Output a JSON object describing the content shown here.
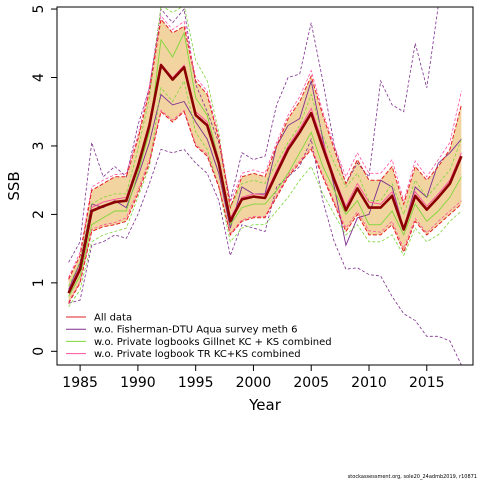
{
  "chart_data": {
    "type": "line",
    "xlabel": "Year",
    "ylabel": "SSB",
    "xlim": [
      1983,
      2019
    ],
    "ylim": [
      -0.2,
      5.03
    ],
    "x_ticks": [
      "1985",
      "1990",
      "1995",
      "2000",
      "2005",
      "2010",
      "2015"
    ],
    "y_ticks": [
      "0",
      "1",
      "2",
      "3",
      "4",
      "5"
    ],
    "x": [
      1984,
      1985,
      1986,
      1987,
      1988,
      1989,
      1990,
      1991,
      1992,
      1993,
      1994,
      1995,
      1996,
      1997,
      1998,
      1999,
      2000,
      2001,
      2002,
      2003,
      2004,
      2005,
      2006,
      2007,
      2008,
      2009,
      2010,
      2011,
      2012,
      2013,
      2014,
      2015,
      2016,
      2017,
      2018
    ],
    "series": [
      {
        "name": "All data",
        "color": "#8b0000",
        "main": true,
        "values": [
          0.85,
          1.2,
          2.05,
          2.12,
          2.18,
          2.2,
          2.7,
          3.3,
          4.18,
          3.97,
          4.15,
          3.45,
          3.3,
          2.75,
          1.9,
          2.22,
          2.26,
          2.24,
          2.6,
          2.95,
          3.2,
          3.48,
          2.98,
          2.5,
          2.06,
          2.38,
          2.1,
          2.1,
          2.27,
          1.78,
          2.27,
          2.07,
          2.25,
          2.45,
          2.85
        ],
        "lower": [
          0.7,
          1.0,
          1.75,
          1.82,
          1.85,
          1.9,
          2.3,
          2.75,
          3.5,
          3.35,
          3.5,
          3.0,
          2.85,
          2.4,
          1.7,
          1.9,
          1.95,
          1.95,
          2.25,
          2.55,
          2.75,
          2.95,
          2.55,
          2.15,
          1.75,
          2.0,
          1.7,
          1.7,
          1.85,
          1.45,
          1.9,
          1.7,
          1.85,
          2.0,
          2.15
        ],
        "upper": [
          1.05,
          1.4,
          2.35,
          2.45,
          2.55,
          2.55,
          3.1,
          3.8,
          4.85,
          4.65,
          4.75,
          3.95,
          3.75,
          3.1,
          2.1,
          2.55,
          2.6,
          2.55,
          3.0,
          3.4,
          3.65,
          4.02,
          3.45,
          2.95,
          2.45,
          2.8,
          2.5,
          2.5,
          2.7,
          2.15,
          2.7,
          2.5,
          2.7,
          2.95,
          3.6
        ]
      },
      {
        "name": "w.o. Fisherman-DTU Aqua survey meth 6",
        "color": "#7e2f8e",
        "values": [
          0.9,
          1.3,
          2.15,
          2.1,
          2.2,
          2.1,
          2.55,
          3.05,
          3.75,
          3.6,
          3.65,
          3.35,
          3.1,
          2.6,
          1.8,
          2.4,
          2.3,
          2.3,
          3.0,
          3.3,
          3.4,
          3.95,
          3.1,
          2.4,
          1.55,
          1.95,
          2.0,
          2.5,
          2.4,
          1.8,
          2.4,
          2.25,
          2.75,
          2.9,
          3.1
        ],
        "lower": [
          0.7,
          0.75,
          1.55,
          1.6,
          1.7,
          1.65,
          2.0,
          2.45,
          2.95,
          2.9,
          2.95,
          2.75,
          2.6,
          2.2,
          1.4,
          1.85,
          1.8,
          1.75,
          2.4,
          2.55,
          2.7,
          3.1,
          2.2,
          1.6,
          1.2,
          1.22,
          1.12,
          1.1,
          0.8,
          0.55,
          0.45,
          0.22,
          0.22,
          0.15,
          -0.2
        ],
        "upper": [
          1.3,
          1.6,
          3.05,
          2.55,
          2.7,
          2.55,
          3.3,
          3.85,
          5.0,
          4.8,
          5.0,
          3.9,
          3.5,
          3.05,
          2.2,
          2.9,
          2.8,
          2.85,
          3.6,
          4.0,
          4.05,
          4.8,
          3.95,
          3.0,
          2.45,
          2.75,
          2.55,
          3.95,
          3.6,
          3.5,
          4.5,
          3.85,
          5.05,
          5.05,
          5.05
        ]
      },
      {
        "name": "w.o. Private logbooks Gillnet KC + KS combined",
        "color": "#7fd63b",
        "values": [
          0.8,
          1.1,
          1.85,
          1.95,
          2.05,
          2.05,
          2.6,
          3.2,
          4.55,
          4.3,
          4.65,
          3.7,
          3.45,
          2.8,
          1.85,
          2.1,
          2.15,
          2.15,
          2.35,
          2.6,
          2.9,
          3.2,
          2.7,
          2.35,
          2.0,
          2.2,
          1.85,
          1.85,
          2.05,
          1.7,
          2.15,
          1.9,
          2.05,
          2.25,
          2.55
        ],
        "lower": [
          0.65,
          0.9,
          1.6,
          1.7,
          1.75,
          1.8,
          2.25,
          2.7,
          3.85,
          3.65,
          3.95,
          3.2,
          2.95,
          2.4,
          1.6,
          1.8,
          1.85,
          1.85,
          2.05,
          2.25,
          2.5,
          2.7,
          2.3,
          2.0,
          1.7,
          1.85,
          1.6,
          1.6,
          1.7,
          1.4,
          1.8,
          1.6,
          1.7,
          1.9,
          2.05
        ],
        "upper": [
          0.95,
          1.3,
          2.15,
          2.25,
          2.3,
          2.3,
          2.95,
          3.7,
          5.05,
          4.95,
          5.05,
          4.25,
          3.95,
          3.2,
          2.1,
          2.45,
          2.5,
          2.45,
          2.75,
          3.05,
          3.3,
          3.75,
          3.15,
          2.75,
          2.4,
          2.6,
          2.2,
          2.2,
          2.45,
          2.0,
          2.5,
          2.25,
          2.45,
          2.65,
          3.1
        ]
      },
      {
        "name": "w.o. Private logbook TR KC+KS combined",
        "color": "#ff4fa0",
        "values": [
          0.88,
          1.25,
          2.1,
          2.18,
          2.22,
          2.25,
          2.75,
          3.35,
          4.2,
          4.0,
          4.18,
          3.5,
          3.35,
          2.8,
          1.95,
          2.25,
          2.3,
          2.28,
          2.65,
          3.0,
          3.25,
          3.55,
          3.05,
          2.55,
          2.12,
          2.45,
          2.18,
          2.15,
          2.33,
          1.82,
          2.33,
          2.12,
          2.3,
          2.5,
          2.9
        ],
        "lower": [
          0.72,
          1.02,
          1.78,
          1.85,
          1.88,
          1.95,
          2.35,
          2.8,
          3.52,
          3.38,
          3.52,
          3.02,
          2.88,
          2.42,
          1.72,
          1.92,
          1.97,
          1.97,
          2.28,
          2.58,
          2.78,
          2.98,
          2.58,
          2.18,
          1.8,
          2.04,
          1.76,
          1.74,
          1.9,
          1.5,
          1.94,
          1.73,
          1.9,
          2.05,
          2.2
        ],
        "upper": [
          1.08,
          1.45,
          2.4,
          2.5,
          2.58,
          2.6,
          3.15,
          3.88,
          4.9,
          4.7,
          4.82,
          4.0,
          3.8,
          3.15,
          2.18,
          2.6,
          2.65,
          2.6,
          3.05,
          3.45,
          3.72,
          4.1,
          3.5,
          3.0,
          2.55,
          2.9,
          2.6,
          2.6,
          2.8,
          2.2,
          2.78,
          2.55,
          2.8,
          3.05,
          3.8
        ]
      }
    ],
    "band_color": "#f2d4a0",
    "legend_position": "bottom-left",
    "footnote": "stockassessment.org, sole20_24admb2019, r10871"
  }
}
